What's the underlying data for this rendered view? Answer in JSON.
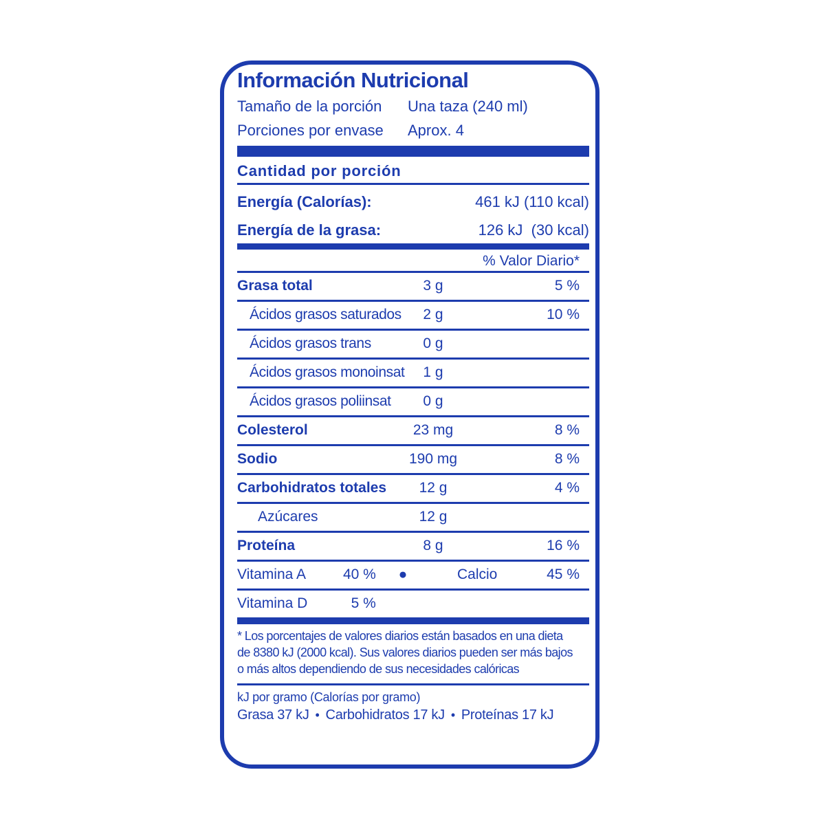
{
  "accent_color": "#1d3cae",
  "title": "Información Nutricional",
  "serving": {
    "rows": [
      {
        "label": "Tamaño de la porción",
        "value": "Una taza (240 ml)"
      },
      {
        "label": "Porciones por envase",
        "value": "Aprox. 4"
      }
    ]
  },
  "amount_header": "Cantidad por porción",
  "energy": [
    {
      "label": "Energía (Calorías):",
      "value": "461 kJ (110 kcal)"
    },
    {
      "label": "Energía de la grasa:",
      "value": "126 kJ  (30 kcal)"
    }
  ],
  "daily_value_header": "% Valor Diario*",
  "nutrients": [
    {
      "label": "Grasa total",
      "amount": "3 g",
      "dv": "5 %"
    },
    {
      "label": "Ácidos grasos saturados",
      "amount": "2 g",
      "dv": "10 %"
    },
    {
      "label": "Ácidos grasos trans",
      "amount": "0 g",
      "dv": ""
    },
    {
      "label": "Ácidos grasos monoinsat",
      "amount": "1 g",
      "dv": ""
    },
    {
      "label": "Ácidos grasos poliinsat",
      "amount": "0 g",
      "dv": ""
    },
    {
      "label": "Colesterol",
      "amount": "23 mg",
      "dv": "8 %"
    },
    {
      "label": "Sodio",
      "amount": "190 mg",
      "dv": "8 %"
    },
    {
      "label": "Carbohidratos totales",
      "amount": "12 g",
      "dv": "4 %"
    },
    {
      "label": "Azúcares",
      "amount": "12 g",
      "dv": ""
    },
    {
      "label": "Proteína",
      "amount": "8 g",
      "dv": "16 %"
    }
  ],
  "vitamins": {
    "row1": {
      "left_label": "Vitamina A",
      "left_value": "40 %",
      "bullet": "●",
      "right_label": "Calcio",
      "right_value": "45 %"
    },
    "row2": {
      "left_label": "Vitamina D",
      "left_value": "5 %"
    }
  },
  "footnote": {
    "lines": [
      "* Los porcentajes de valores diarios están basados en una dieta",
      "de 8380 kJ (2000 kcal). Sus valores diarios pueden ser más bajos",
      "o más altos dependiendo de sus necesidades calóricas"
    ]
  },
  "energy_per_gram": {
    "heading": "kJ por gramo (Calorías por gramo)",
    "separator": "•",
    "items": [
      "Grasa 37 kJ",
      "Carbohidratos 17 kJ",
      "Proteínas 17 kJ"
    ]
  }
}
